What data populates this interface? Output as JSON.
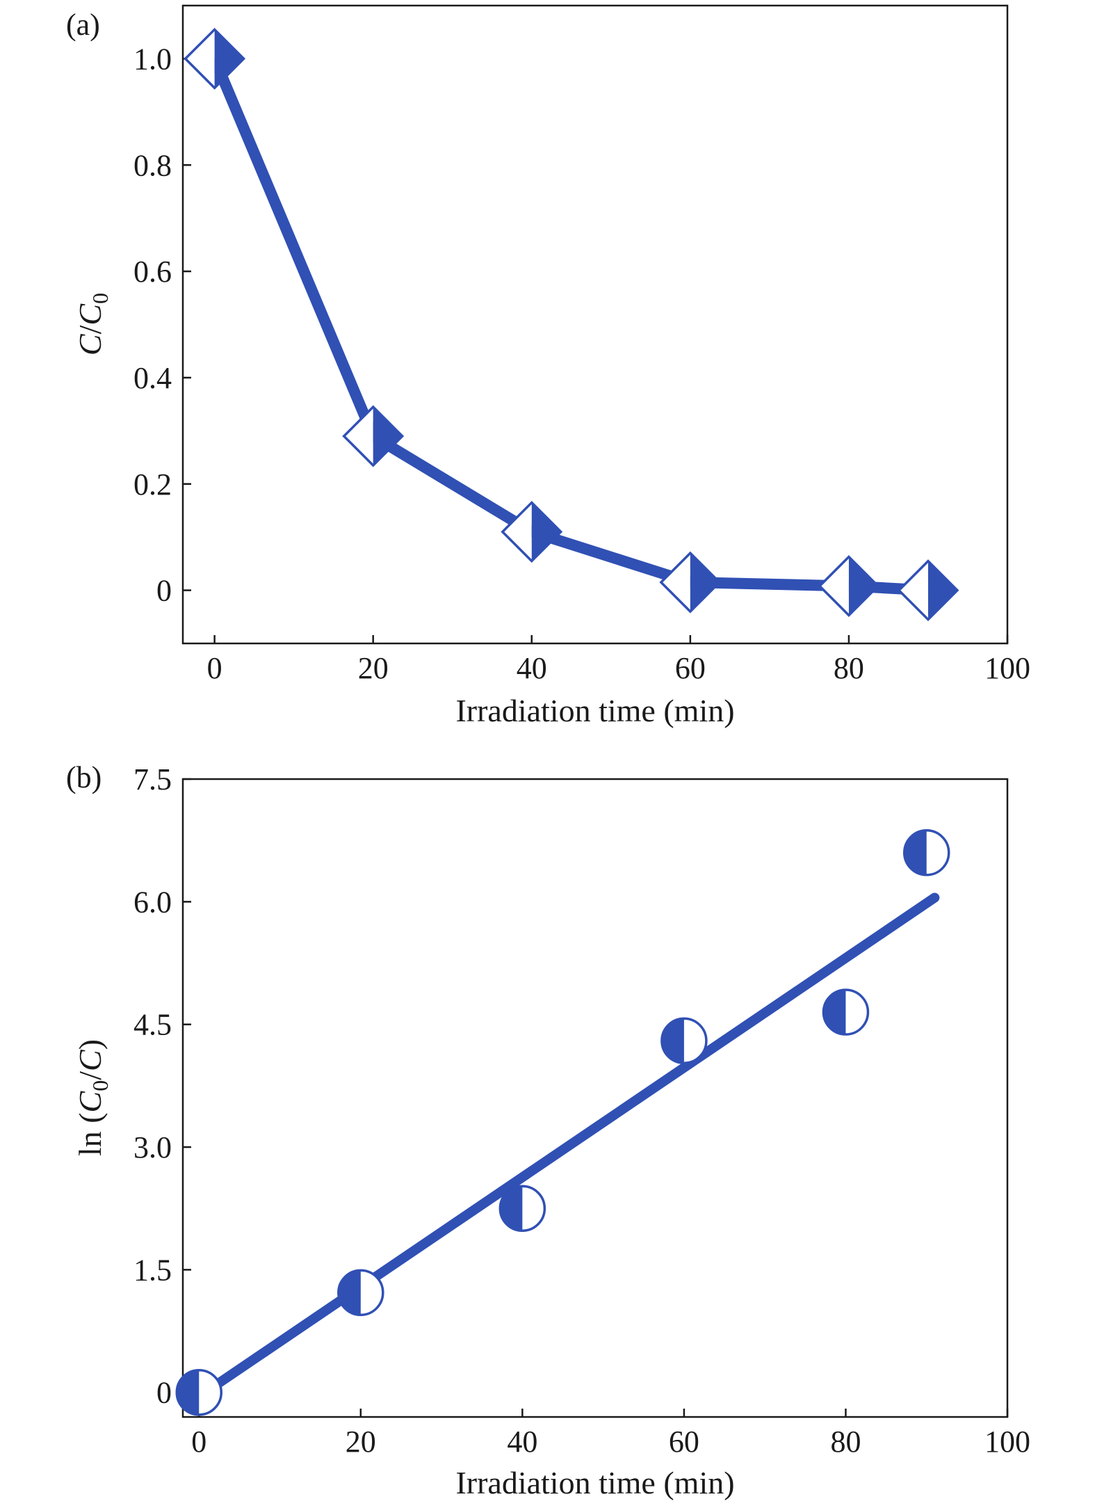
{
  "series_color": "#3050b4",
  "chart_data": [
    {
      "type": "line",
      "panel_label": "(a)",
      "xlabel": "Irradiation time (min)",
      "ylabel_main": "C",
      "ylabel_sep": "/",
      "ylabel_main2": "C",
      "ylabel_sub": "0",
      "xlim": [
        -4,
        100
      ],
      "ylim": [
        -0.1,
        1.1
      ],
      "xticks": [
        0,
        20,
        40,
        60,
        80,
        100
      ],
      "yticks": [
        0,
        0.2,
        0.4,
        0.6,
        0.8,
        1.0
      ],
      "ytick_labels": [
        "0",
        "0.2",
        "0.4",
        "0.6",
        "0.8",
        "1.0"
      ],
      "marker": "half-filled-diamond",
      "x": [
        0,
        20,
        40,
        60,
        80,
        90
      ],
      "y": [
        1.0,
        0.29,
        0.11,
        0.015,
        0.008,
        0.0
      ]
    },
    {
      "type": "scatter",
      "panel_label": "(b)",
      "xlabel": "Irradiation time (min)",
      "ylabel_pre": "ln (",
      "ylabel_c1": "C",
      "ylabel_sub": "0",
      "ylabel_mid": "/",
      "ylabel_c2": "C",
      "ylabel_post": ")",
      "xlim": [
        -2,
        100
      ],
      "ylim": [
        -0.3,
        7.5
      ],
      "xticks": [
        0,
        20,
        40,
        60,
        80,
        100
      ],
      "yticks": [
        0,
        1.5,
        3.0,
        4.5,
        6.0,
        7.5
      ],
      "ytick_labels": [
        "0",
        "1.5",
        "3.0",
        "4.5",
        "6.0",
        "7.5"
      ],
      "marker": "half-filled-circle",
      "x": [
        0,
        20,
        40,
        60,
        80,
        90
      ],
      "y": [
        0.0,
        1.22,
        2.25,
        4.3,
        4.65,
        6.6
      ],
      "fit_line": {
        "x": [
          0,
          91
        ],
        "y": [
          -0.05,
          6.05
        ]
      }
    }
  ]
}
